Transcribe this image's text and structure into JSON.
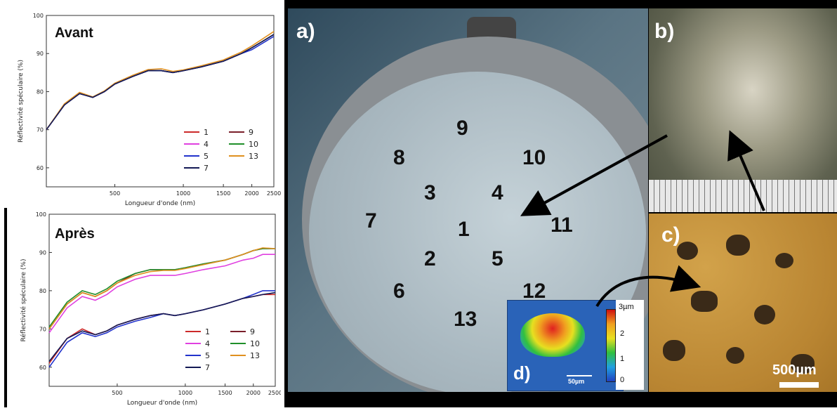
{
  "chart_data": [
    {
      "type": "line",
      "title": "Avant",
      "xlabel": "Longueur d'onde (nm)",
      "ylabel": "Réflectivité spéculaire (%)",
      "x_scale": "log",
      "xlim": [
        250,
        2500
      ],
      "ylim": [
        55,
        100
      ],
      "x_ticks": [
        500,
        1000,
        1500,
        2000,
        2500
      ],
      "y_ticks": [
        60,
        70,
        80,
        90,
        100
      ],
      "legend_position": "bottom-right",
      "legend": [
        "1",
        "9",
        "4",
        "10",
        "5",
        "13",
        "7"
      ],
      "series": [
        {
          "name": "1",
          "color": "#cc2a2a",
          "x": [
            250,
            300,
            350,
            400,
            450,
            500,
            600,
            700,
            800,
            900,
            1000,
            1200,
            1500,
            1800,
            2000,
            2200,
            2500
          ],
          "y": [
            70,
            76.5,
            79.5,
            78.5,
            80,
            82,
            84,
            85.5,
            85.5,
            85,
            85.5,
            86.5,
            88,
            90,
            91.5,
            93,
            95
          ]
        },
        {
          "name": "9",
          "color": "#7a1f2a",
          "x": [
            250,
            300,
            350,
            400,
            450,
            500,
            600,
            700,
            800,
            900,
            1000,
            1200,
            1500,
            1800,
            2000,
            2200,
            2500
          ],
          "y": [
            70,
            76.5,
            79.5,
            78.5,
            80,
            82,
            84,
            85.5,
            85.5,
            85,
            85.5,
            86.5,
            88,
            90,
            91.5,
            93,
            95
          ]
        },
        {
          "name": "4",
          "color": "#e040e0",
          "x": [
            250,
            300,
            350,
            400,
            450,
            500,
            600,
            700,
            800,
            900,
            1000,
            1200,
            1500,
            1800,
            2000,
            2200,
            2500
          ],
          "y": [
            70,
            76.5,
            79.5,
            78.5,
            80,
            82,
            84,
            85.5,
            85.5,
            85,
            85.5,
            86.5,
            88,
            90,
            91.5,
            93,
            95
          ]
        },
        {
          "name": "10",
          "color": "#1f8f2a",
          "x": [
            250,
            300,
            350,
            400,
            450,
            500,
            600,
            700,
            800,
            900,
            1000,
            1200,
            1500,
            1800,
            2000,
            2200,
            2500
          ],
          "y": [
            70,
            76.5,
            79.5,
            78.5,
            80,
            82,
            84,
            85.5,
            85.5,
            85,
            85.5,
            86.5,
            88,
            90,
            91.5,
            93,
            95
          ]
        },
        {
          "name": "5",
          "color": "#2233cc",
          "x": [
            250,
            300,
            350,
            400,
            450,
            500,
            600,
            700,
            800,
            900,
            1000,
            1200,
            1500,
            1800,
            2000,
            2200,
            2500
          ],
          "y": [
            70,
            76.5,
            79.5,
            78.5,
            80,
            82,
            84,
            85.5,
            85.5,
            85,
            85.5,
            86.5,
            88,
            90,
            91,
            92.5,
            94.5
          ]
        },
        {
          "name": "13",
          "color": "#e0901f",
          "x": [
            250,
            300,
            350,
            400,
            450,
            500,
            600,
            700,
            800,
            900,
            1000,
            1200,
            1500,
            1800,
            2000,
            2200,
            2500
          ],
          "y": [
            70,
            76.8,
            79.8,
            78.6,
            80.2,
            82.2,
            84.3,
            85.8,
            86,
            85.3,
            85.7,
            86.8,
            88.3,
            90.4,
            92,
            93.6,
            95.8
          ]
        },
        {
          "name": "7",
          "color": "#141a55",
          "x": [
            250,
            300,
            350,
            400,
            450,
            500,
            600,
            700,
            800,
            900,
            1000,
            1200,
            1500,
            1800,
            2000,
            2200,
            2500
          ],
          "y": [
            70,
            76.5,
            79.5,
            78.5,
            80,
            82,
            84,
            85.5,
            85.5,
            85,
            85.5,
            86.5,
            88,
            90,
            91.5,
            93,
            95
          ]
        }
      ]
    },
    {
      "type": "line",
      "title": "Après",
      "xlabel": "Longueur d'onde (nm)",
      "ylabel": "Réflectivité spéculaire (%)",
      "x_scale": "log",
      "xlim": [
        250,
        2500
      ],
      "ylim": [
        55,
        100
      ],
      "x_ticks": [
        500,
        1000,
        1500,
        2000,
        2500
      ],
      "y_ticks": [
        60,
        70,
        80,
        90,
        100
      ],
      "legend_position": "bottom-right",
      "legend": [
        "1",
        "9",
        "4",
        "10",
        "5",
        "13",
        "7"
      ],
      "series": [
        {
          "name": "1",
          "color": "#cc2a2a",
          "x": [
            250,
            300,
            350,
            400,
            450,
            500,
            600,
            700,
            800,
            900,
            1000,
            1200,
            1500,
            1800,
            2000,
            2200,
            2500
          ],
          "y": [
            61,
            67.5,
            70,
            68.5,
            69.5,
            71,
            72.5,
            73.5,
            74,
            73.5,
            74,
            75,
            76.5,
            78,
            78.5,
            79,
            79
          ]
        },
        {
          "name": "9",
          "color": "#7a1f2a",
          "x": [
            250,
            300,
            350,
            400,
            450,
            500,
            600,
            700,
            800,
            900,
            1000,
            1200,
            1500,
            1800,
            2000,
            2200,
            2500
          ],
          "y": [
            70,
            76.5,
            79.5,
            78.5,
            80,
            82,
            84.5,
            85.5,
            85.5,
            85.5,
            86,
            87,
            88,
            89.5,
            90.5,
            91,
            91
          ]
        },
        {
          "name": "4",
          "color": "#e040e0",
          "x": [
            250,
            300,
            350,
            400,
            450,
            500,
            600,
            700,
            800,
            900,
            1000,
            1200,
            1500,
            1800,
            2000,
            2200,
            2500
          ],
          "y": [
            69,
            75.5,
            78.5,
            77.5,
            79,
            81,
            83,
            84,
            84,
            84,
            84.5,
            85.5,
            86.5,
            88,
            88.5,
            89.5,
            89.5
          ]
        },
        {
          "name": "10",
          "color": "#1f8f2a",
          "x": [
            250,
            300,
            350,
            400,
            450,
            500,
            600,
            700,
            800,
            900,
            1000,
            1200,
            1500,
            1800,
            2000,
            2200,
            2500
          ],
          "y": [
            70.5,
            77,
            80,
            79,
            80.5,
            82.5,
            84.5,
            85.5,
            85.5,
            85.5,
            86,
            87,
            88,
            89.5,
            90.5,
            91,
            91
          ]
        },
        {
          "name": "5",
          "color": "#2233cc",
          "x": [
            250,
            300,
            350,
            400,
            450,
            500,
            600,
            700,
            800,
            900,
            1000,
            1200,
            1500,
            1800,
            2000,
            2200,
            2500
          ],
          "y": [
            60,
            66.5,
            69,
            68,
            69,
            70.5,
            72,
            73,
            74,
            73.5,
            74,
            75,
            76.5,
            78,
            79,
            80,
            80
          ]
        },
        {
          "name": "13",
          "color": "#e0901f",
          "x": [
            250,
            300,
            350,
            400,
            450,
            500,
            600,
            700,
            800,
            900,
            1000,
            1200,
            1500,
            1800,
            2000,
            2200,
            2500
          ],
          "y": [
            70,
            76.5,
            79.5,
            78.5,
            80,
            82,
            84,
            85,
            85.3,
            85.3,
            85.8,
            86.8,
            88,
            89.5,
            90.5,
            91.2,
            91
          ]
        },
        {
          "name": "7",
          "color": "#141a55",
          "x": [
            250,
            300,
            350,
            400,
            450,
            500,
            600,
            700,
            800,
            900,
            1000,
            1200,
            1500,
            1800,
            2000,
            2200,
            2500
          ],
          "y": [
            61.5,
            67.5,
            69.5,
            68.5,
            69.5,
            71,
            72.5,
            73.5,
            74,
            73.5,
            74,
            75,
            76.5,
            78,
            78.5,
            79,
            79.5
          ]
        }
      ]
    }
  ],
  "photos": {
    "panel_a": {
      "letter": "a)",
      "positions": [
        "1",
        "2",
        "3",
        "4",
        "5",
        "6",
        "7",
        "8",
        "9",
        "10",
        "11",
        "12",
        "13"
      ]
    },
    "panel_b": {
      "letter": "b)"
    },
    "panel_c": {
      "letter": "c)",
      "scale": "500µm"
    },
    "panel_d": {
      "letter": "d)",
      "scale": "50µm",
      "colorbar_ticks": [
        "3µm",
        "2",
        "1",
        "0"
      ]
    }
  }
}
